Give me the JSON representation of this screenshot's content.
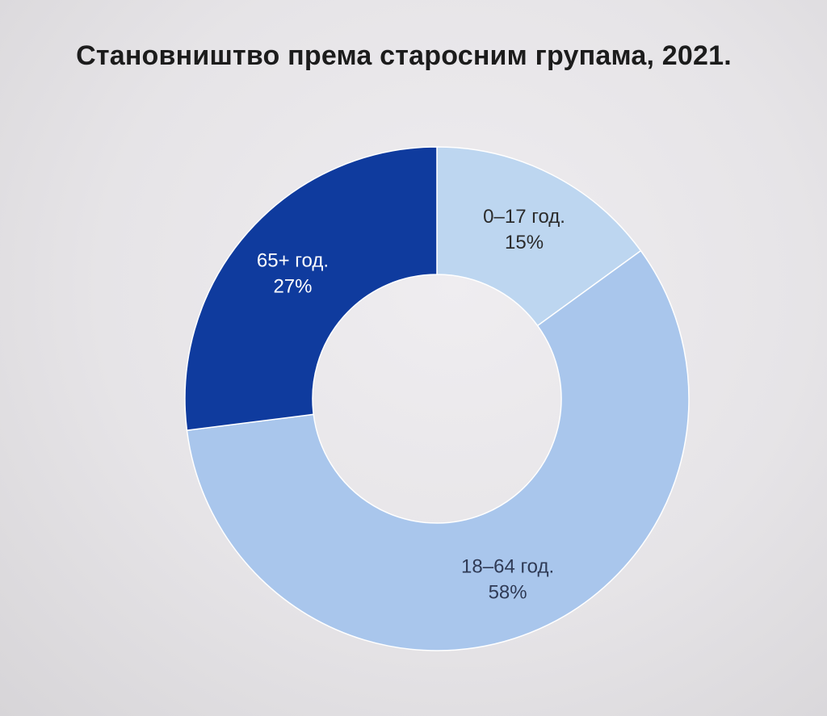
{
  "chart_data": {
    "type": "pie",
    "donut": true,
    "title": "Становништво према старосним групама, 2021.",
    "slices": [
      {
        "label": "0–17 год.",
        "value": 15,
        "value_label": "15%",
        "color": "#bdd6f0",
        "text_color": "#2b2b2b"
      },
      {
        "label": "18–64 год.",
        "value": 58,
        "value_label": "58%",
        "color": "#a9c6ec",
        "text_color": "#2f3a55"
      },
      {
        "label": "65+ год.",
        "value": 27,
        "value_label": "27%",
        "color": "#0f3b9e",
        "text_color": "#ffffff"
      }
    ],
    "legend": "none"
  }
}
